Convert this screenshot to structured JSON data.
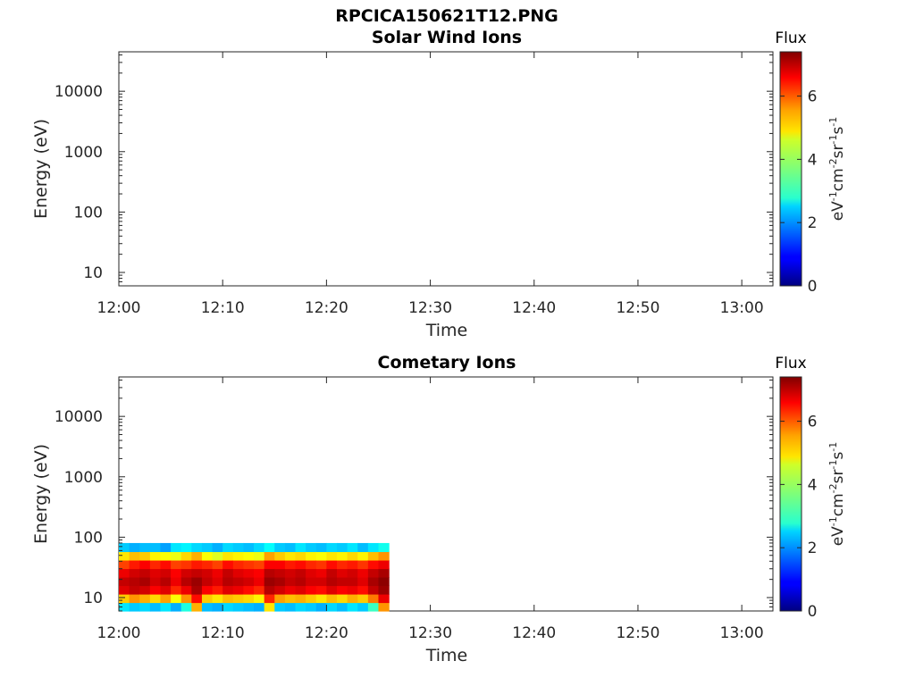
{
  "figure": {
    "title": "RPCICA150621T12.PNG"
  },
  "chart_data": [
    {
      "type": "heatmap",
      "title": "Solar Wind Ions",
      "xlabel": "Time",
      "ylabel": "Energy (eV)",
      "x_ticks": [
        "12:00",
        "12:10",
        "12:20",
        "12:30",
        "12:40",
        "12:50",
        "13:00"
      ],
      "x_range": [
        "12:00",
        "13:03"
      ],
      "y_scale": "log",
      "y_ticks": [
        "10",
        "100",
        "1000",
        "10000"
      ],
      "y_range": [
        6,
        45000
      ],
      "colorbar": {
        "title": "Flux",
        "label": "eV-1cm-2sr-1s-1",
        "ticks": [
          "0",
          "2",
          "4",
          "6"
        ],
        "range": [
          0,
          7.4
        ],
        "colormap": "jet"
      },
      "data_extent": null,
      "cells": []
    },
    {
      "type": "heatmap",
      "title": "Cometary Ions",
      "xlabel": "Time",
      "ylabel": "Energy (eV)",
      "x_ticks": [
        "12:00",
        "12:10",
        "12:20",
        "12:30",
        "12:40",
        "12:50",
        "13:00"
      ],
      "x_range": [
        "12:00",
        "13:03"
      ],
      "y_scale": "log",
      "y_ticks": [
        "10",
        "100",
        "1000",
        "10000"
      ],
      "y_range": [
        6,
        45000
      ],
      "colorbar": {
        "title": "Flux",
        "label": "eV-1cm-2sr-1s-1",
        "ticks": [
          "0",
          "2",
          "4",
          "6"
        ],
        "range": [
          0,
          7.4
        ],
        "colormap": "jet"
      },
      "data_extent": {
        "time": [
          "12:00",
          "12:26"
        ],
        "energy_eV": [
          6,
          80
        ]
      },
      "cells": [
        {
          "t": [
            0.0,
            1.0
          ],
          "e": [
            6,
            80
          ],
          "flux": [
            2.6,
            5.0,
            6.7,
            6.9,
            6.6,
            6.0,
            4.8,
            2.4
          ]
        },
        {
          "t": [
            1.0,
            2.0
          ],
          "e": [
            6,
            80
          ],
          "flux": [
            2.4,
            5.4,
            6.9,
            7.0,
            6.8,
            6.3,
            5.1,
            2.2
          ]
        },
        {
          "t": [
            2.0,
            3.0
          ],
          "e": [
            6,
            80
          ],
          "flux": [
            2.5,
            5.2,
            6.8,
            7.1,
            6.9,
            6.5,
            5.0,
            2.3
          ]
        },
        {
          "t": [
            3.0,
            4.0
          ],
          "e": [
            6,
            80
          ],
          "flux": [
            2.3,
            4.9,
            6.5,
            6.8,
            6.7,
            6.2,
            4.7,
            2.3
          ]
        },
        {
          "t": [
            4.0,
            5.0
          ],
          "e": [
            6,
            80
          ],
          "flux": [
            2.6,
            5.3,
            6.7,
            7.0,
            6.8,
            6.4,
            4.6,
            2.1
          ]
        },
        {
          "t": [
            5.0,
            6.0
          ],
          "e": [
            6,
            80
          ],
          "flux": [
            2.2,
            4.6,
            6.2,
            6.6,
            6.5,
            6.0,
            4.5,
            2.6
          ]
        },
        {
          "t": [
            6.0,
            7.0
          ],
          "e": [
            6,
            80
          ],
          "flux": [
            3.0,
            5.4,
            6.6,
            7.0,
            6.8,
            6.1,
            4.9,
            2.7
          ]
        },
        {
          "t": [
            7.0,
            8.0
          ],
          "e": [
            6,
            80
          ],
          "flux": [
            5.2,
            6.4,
            7.1,
            7.2,
            6.9,
            6.3,
            5.2,
            2.5
          ]
        },
        {
          "t": [
            8.0,
            9.0
          ],
          "e": [
            6,
            80
          ],
          "flux": [
            2.3,
            5.0,
            6.5,
            6.9,
            6.8,
            6.2,
            4.6,
            2.4
          ]
        },
        {
          "t": [
            9.0,
            10.0
          ],
          "e": [
            6,
            80
          ],
          "flux": [
            2.2,
            4.8,
            6.3,
            6.7,
            6.6,
            6.0,
            4.4,
            2.2
          ]
        },
        {
          "t": [
            10.0,
            11.0
          ],
          "e": [
            6,
            80
          ],
          "flux": [
            2.5,
            5.1,
            6.7,
            7.0,
            6.9,
            6.4,
            4.8,
            2.5
          ]
        },
        {
          "t": [
            11.0,
            12.0
          ],
          "e": [
            6,
            80
          ],
          "flux": [
            2.4,
            5.0,
            6.6,
            6.9,
            6.7,
            6.2,
            4.7,
            2.4
          ]
        },
        {
          "t": [
            12.0,
            13.0
          ],
          "e": [
            6,
            80
          ],
          "flux": [
            2.3,
            4.9,
            6.4,
            6.8,
            6.6,
            6.1,
            4.6,
            2.3
          ]
        },
        {
          "t": [
            13.0,
            14.0
          ],
          "e": [
            6,
            80
          ],
          "flux": [
            2.2,
            4.7,
            6.2,
            6.6,
            6.5,
            6.0,
            4.5,
            2.5
          ]
        },
        {
          "t": [
            14.0,
            15.0
          ],
          "e": [
            6,
            80
          ],
          "flux": [
            4.8,
            6.2,
            7.0,
            7.2,
            7.0,
            6.5,
            5.3,
            2.8
          ]
        },
        {
          "t": [
            15.0,
            16.0
          ],
          "e": [
            6,
            80
          ],
          "flux": [
            2.4,
            5.3,
            6.8,
            7.1,
            6.9,
            6.5,
            5.0,
            2.4
          ]
        },
        {
          "t": [
            16.0,
            17.0
          ],
          "e": [
            6,
            80
          ],
          "flux": [
            2.3,
            5.1,
            6.6,
            6.9,
            6.8,
            6.3,
            4.8,
            2.3
          ]
        },
        {
          "t": [
            17.0,
            18.0
          ],
          "e": [
            6,
            80
          ],
          "flux": [
            2.5,
            5.2,
            6.7,
            7.0,
            6.9,
            6.4,
            4.9,
            2.6
          ]
        },
        {
          "t": [
            18.0,
            19.0
          ],
          "e": [
            6,
            80
          ],
          "flux": [
            2.4,
            5.0,
            6.5,
            6.8,
            6.7,
            6.2,
            4.7,
            2.4
          ]
        },
        {
          "t": [
            19.0,
            20.0
          ],
          "e": [
            6,
            80
          ],
          "flux": [
            2.2,
            4.8,
            6.4,
            6.8,
            6.6,
            6.1,
            4.6,
            2.3
          ]
        },
        {
          "t": [
            20.0,
            21.0
          ],
          "e": [
            6,
            80
          ],
          "flux": [
            2.5,
            5.1,
            6.7,
            7.0,
            6.9,
            6.4,
            4.8,
            2.5
          ]
        },
        {
          "t": [
            21.0,
            22.0
          ],
          "e": [
            6,
            80
          ],
          "flux": [
            2.3,
            4.9,
            6.5,
            6.9,
            6.7,
            6.2,
            4.7,
            2.4
          ]
        },
        {
          "t": [
            22.0,
            23.0
          ],
          "e": [
            6,
            80
          ],
          "flux": [
            2.6,
            5.2,
            6.6,
            6.9,
            6.8,
            6.3,
            4.9,
            2.6
          ]
        },
        {
          "t": [
            23.0,
            24.0
          ],
          "e": [
            6,
            80
          ],
          "flux": [
            2.4,
            5.0,
            6.4,
            6.7,
            6.6,
            6.1,
            4.7,
            2.3
          ]
        },
        {
          "t": [
            24.0,
            25.0
          ],
          "e": [
            6,
            80
          ],
          "flux": [
            3.2,
            5.6,
            6.9,
            7.1,
            6.9,
            6.4,
            5.1,
            2.6
          ]
        },
        {
          "t": [
            25.0,
            26.0
          ],
          "e": [
            6,
            80
          ],
          "flux": [
            5.4,
            6.6,
            7.2,
            7.3,
            7.1,
            6.6,
            5.4,
            2.9
          ]
        }
      ]
    }
  ]
}
